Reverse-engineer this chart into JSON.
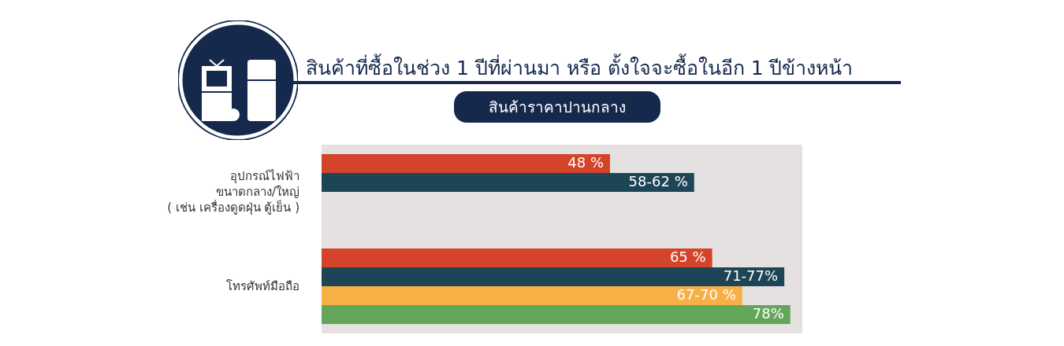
{
  "chart_data": {
    "type": "bar",
    "orientation": "horizontal",
    "title": "สินค้าที่ซื้อในช่วง 1 ปีที่ผ่านมา หรือ ตั้งใจจะซื้อในอีก 1 ปีข้างหน้า",
    "subtitle": "สินค้าราคาปานกลาง",
    "categories": [
      "อุปกรณ์ไฟฟ้า\nขนาดกลาง/ใหญ่\n( เช่น เครื่องดูดฝุ่น ตู้เย็น )",
      "โทรศัพท์มือถือ"
    ],
    "series": [
      {
        "color": "#d4442a",
        "values": [
          48,
          65
        ],
        "value_labels": [
          "48 %",
          "65 %"
        ]
      },
      {
        "color": "#1e4556",
        "values": [
          62,
          77
        ]
      },
      {
        "color": "#f7b046",
        "values": [
          null,
          70
        ]
      },
      {
        "color": "#63a65a",
        "values": [
          null,
          78
        ],
        "value_labels": [
          null,
          "78%"
        ]
      }
    ],
    "annotations": [
      {
        "text": "58-62 %",
        "x": 62,
        "y": "อุปกรณ์ไฟฟ้า\nขนาดกลาง/ใหญ่\n( เช่น เครื่องดูดฝุ่น ตู้เย็น )"
      },
      {
        "text": "71-77%",
        "x": 77,
        "y": "โทรศัพท์มือถือ"
      },
      {
        "text": "67-70 %",
        "x": 70,
        "y": "โทรศัพท์มือถือ"
      }
    ],
    "tick_labels": "y"
  }
}
